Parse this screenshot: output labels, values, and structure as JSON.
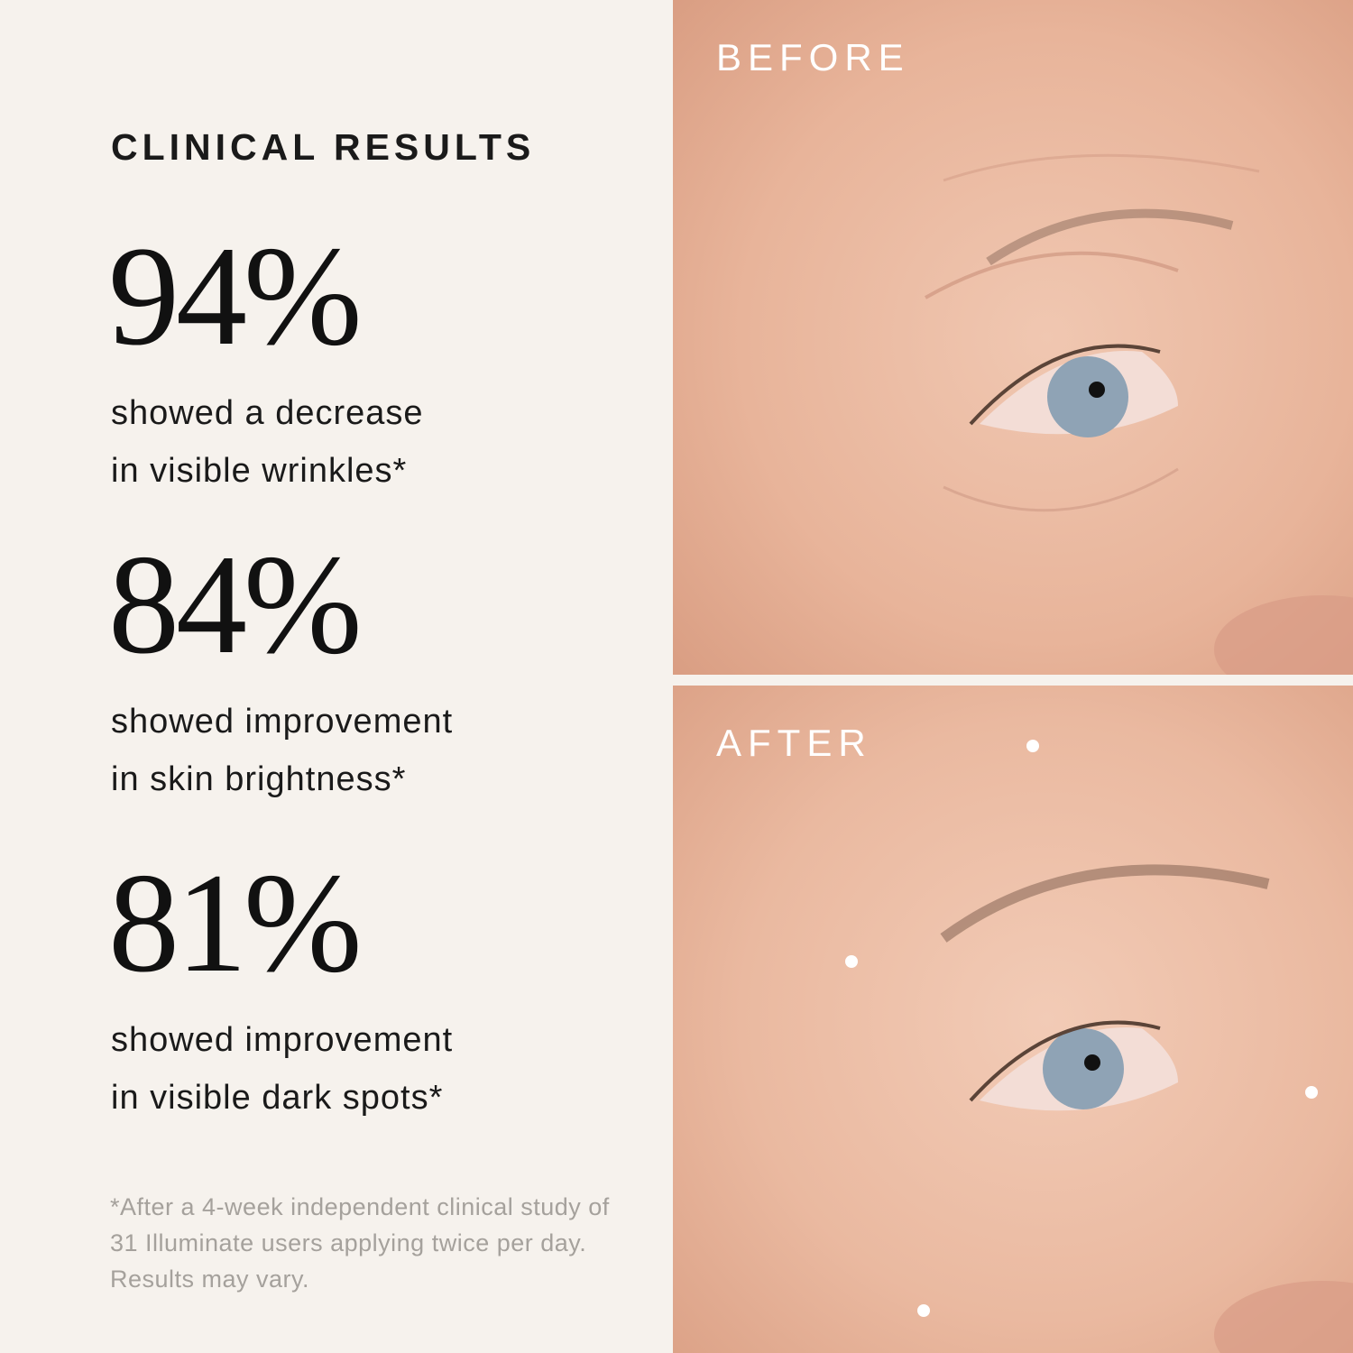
{
  "heading": "CLINICAL RESULTS",
  "stats": [
    {
      "value": "94%",
      "line1": "showed a decrease",
      "line2": "in visible wrinkles*"
    },
    {
      "value": "84%",
      "line1": "showed improvement",
      "line2": "in skin brightness*"
    },
    {
      "value": "81%",
      "line1": "showed improvement",
      "line2": "in visible dark spots*"
    }
  ],
  "footnote": "*After a 4-week independent clinical study of 31 Illuminate users applying twice per day. Results may vary.",
  "photos": {
    "before_label": "BEFORE",
    "after_label": "AFTER"
  },
  "colors": {
    "background": "#f6f2ed",
    "skin": "#eab9a0",
    "eye": "#8fa3b5",
    "footnote": "#a5a19c"
  }
}
